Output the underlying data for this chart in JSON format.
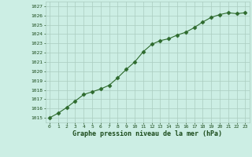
{
  "x": [
    0,
    1,
    2,
    3,
    4,
    5,
    6,
    7,
    8,
    9,
    10,
    11,
    12,
    13,
    14,
    15,
    16,
    17,
    18,
    19,
    20,
    21,
    22,
    23
  ],
  "y": [
    1015.0,
    1015.5,
    1016.1,
    1016.8,
    1017.5,
    1017.8,
    1018.1,
    1018.5,
    1019.3,
    1020.2,
    1021.0,
    1022.1,
    1022.9,
    1023.3,
    1023.5,
    1023.9,
    1024.2,
    1024.7,
    1025.3,
    1025.8,
    1026.1,
    1026.3,
    1026.2,
    1026.3
  ],
  "line_color": "#2d6a2d",
  "marker": "D",
  "marker_size": 2.5,
  "bg_color": "#cceee4",
  "grid_color": "#aaccc0",
  "xlabel": "Graphe pression niveau de la mer (hPa)",
  "xlabel_color": "#1a4a1a",
  "tick_color": "#1a4a1a",
  "ylim": [
    1014.5,
    1027.5
  ],
  "yticks": [
    1015,
    1016,
    1017,
    1018,
    1019,
    1020,
    1021,
    1022,
    1023,
    1024,
    1025,
    1026,
    1027
  ],
  "xlim": [
    -0.5,
    23.5
  ],
  "xticks": [
    0,
    1,
    2,
    3,
    4,
    5,
    6,
    7,
    8,
    9,
    10,
    11,
    12,
    13,
    14,
    15,
    16,
    17,
    18,
    19,
    20,
    21,
    22,
    23
  ]
}
